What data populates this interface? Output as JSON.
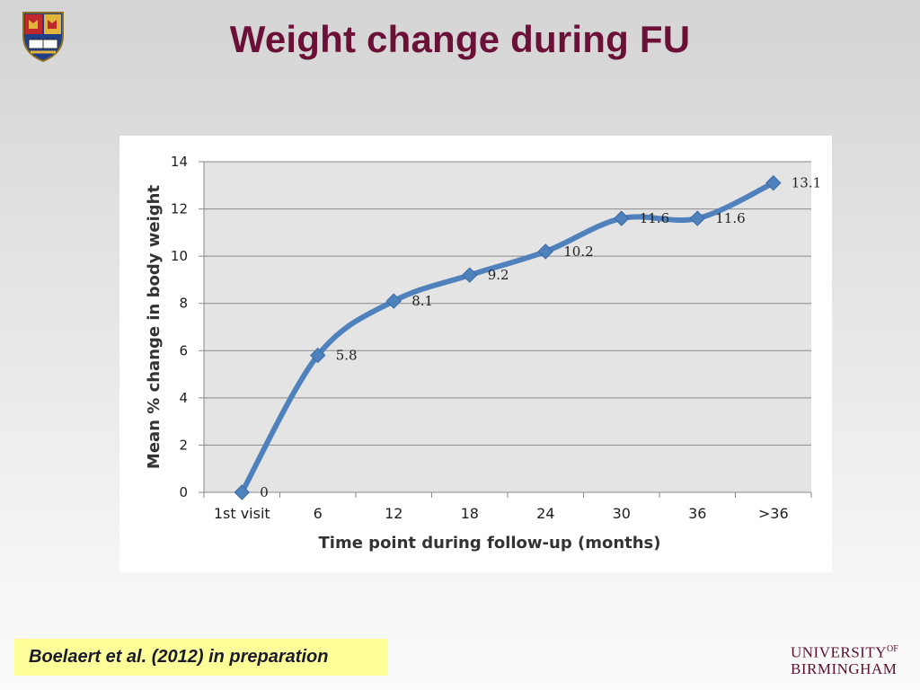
{
  "slide": {
    "title": "Weight change during FU",
    "citation": "Boelaert et al. (2012) in preparation",
    "logo_line1": "UNIVERSITY",
    "logo_of": "OF",
    "logo_line2": "BIRMINGHAM"
  },
  "colors": {
    "title": "#6b1036",
    "series": "#4f81bd",
    "plot_bg": "#e4e4e4",
    "citation_bg": "#ffff99"
  },
  "chart_data": {
    "type": "line",
    "title": "",
    "xlabel": "Time point during follow-up (months)",
    "ylabel": "Mean % change in body weight",
    "categories": [
      "1st visit",
      "6",
      "12",
      "18",
      "24",
      "30",
      "36",
      ">36"
    ],
    "series": [
      {
        "values": [
          0,
          5.8,
          8.1,
          9.2,
          10.2,
          11.6,
          11.6,
          13.1
        ],
        "labels": [
          "0",
          "5.8",
          "8.1",
          "9.2",
          "10.2",
          "11.6",
          "11.6",
          "13.1"
        ],
        "marker": "diamond",
        "smooth": true
      }
    ],
    "ylim": [
      0,
      14
    ],
    "yticks": [
      0,
      2,
      4,
      6,
      8,
      10,
      12,
      14
    ],
    "grid": true,
    "legend": "none"
  }
}
